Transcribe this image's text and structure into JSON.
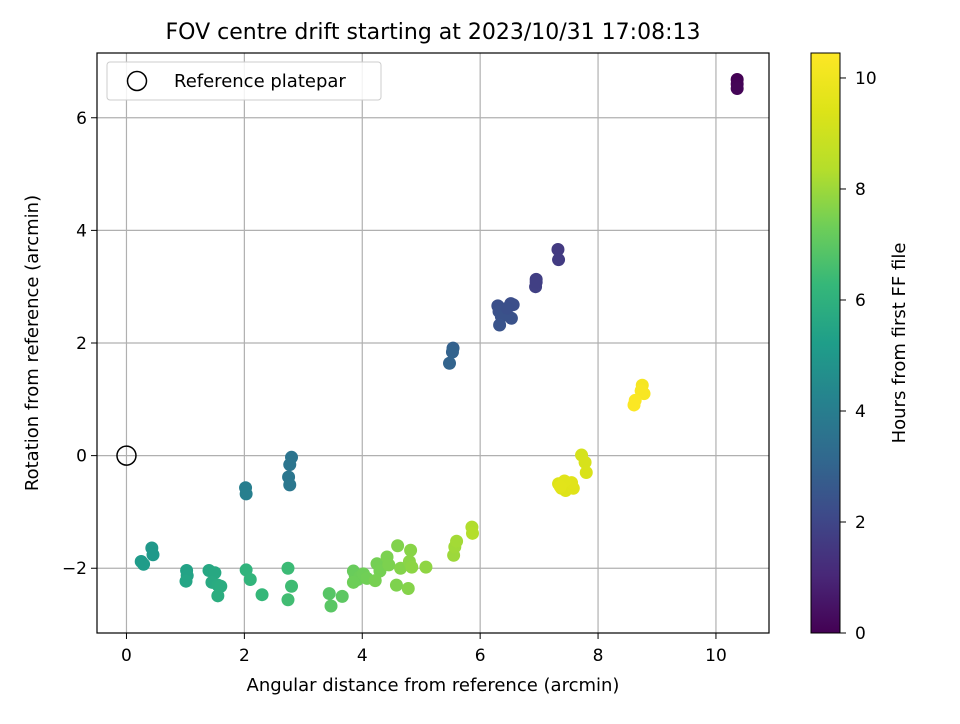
{
  "chart_data": {
    "type": "scatter",
    "title": "FOV centre drift starting at 2023/10/31 17:08:13",
    "xlabel": "Angular distance from reference (arcmin)",
    "ylabel": "Rotation from reference (arcmin)",
    "xlim": [
      -0.5,
      10.9
    ],
    "ylim": [
      -3.15,
      7.15
    ],
    "x_ticks": [
      0,
      2,
      4,
      6,
      8,
      10
    ],
    "y_ticks": [
      -2,
      0,
      2,
      4,
      6
    ],
    "grid": true,
    "legend": {
      "placement": "top-left",
      "entries": [
        "Reference platepar"
      ]
    },
    "reference_point": {
      "x": 0,
      "y": 0,
      "label": "Reference platepar"
    },
    "colorbar": {
      "label": "Hours from first FF file",
      "colormap": "viridis",
      "range": [
        0,
        10.45
      ],
      "ticks": [
        0,
        2,
        4,
        6,
        8,
        10
      ]
    },
    "points": [
      {
        "x": 10.36,
        "y": 6.68,
        "c": 0.0
      },
      {
        "x": 10.36,
        "y": 6.6,
        "c": 0.05
      },
      {
        "x": 10.36,
        "y": 6.52,
        "c": 0.1
      },
      {
        "x": 7.32,
        "y": 3.66,
        "c": 1.6
      },
      {
        "x": 7.33,
        "y": 3.48,
        "c": 1.65
      },
      {
        "x": 6.95,
        "y": 3.13,
        "c": 1.75
      },
      {
        "x": 6.94,
        "y": 3.0,
        "c": 1.8
      },
      {
        "x": 6.95,
        "y": 3.08,
        "c": 1.78
      },
      {
        "x": 6.3,
        "y": 2.66,
        "c": 2.3
      },
      {
        "x": 6.32,
        "y": 2.56,
        "c": 2.35
      },
      {
        "x": 6.36,
        "y": 2.47,
        "c": 2.4
      },
      {
        "x": 6.33,
        "y": 2.32,
        "c": 2.45
      },
      {
        "x": 6.52,
        "y": 2.7,
        "c": 2.25
      },
      {
        "x": 6.56,
        "y": 2.68,
        "c": 2.28
      },
      {
        "x": 6.53,
        "y": 2.44,
        "c": 2.4
      },
      {
        "x": 6.46,
        "y": 2.62,
        "c": 2.3
      },
      {
        "x": 5.54,
        "y": 1.91,
        "c": 2.9
      },
      {
        "x": 5.53,
        "y": 1.84,
        "c": 2.95
      },
      {
        "x": 5.48,
        "y": 1.64,
        "c": 3.0
      },
      {
        "x": 2.8,
        "y": -0.03,
        "c": 3.6
      },
      {
        "x": 2.77,
        "y": -0.16,
        "c": 3.65
      },
      {
        "x": 2.75,
        "y": -0.38,
        "c": 3.7
      },
      {
        "x": 2.77,
        "y": -0.52,
        "c": 3.75
      },
      {
        "x": 2.02,
        "y": -0.57,
        "c": 4.0
      },
      {
        "x": 2.03,
        "y": -0.68,
        "c": 4.05
      },
      {
        "x": 0.43,
        "y": -1.64,
        "c": 5.0
      },
      {
        "x": 0.45,
        "y": -1.76,
        "c": 5.05
      },
      {
        "x": 0.25,
        "y": -1.88,
        "c": 5.1
      },
      {
        "x": 0.29,
        "y": -1.93,
        "c": 5.15
      },
      {
        "x": 1.02,
        "y": -2.04,
        "c": 5.4
      },
      {
        "x": 1.03,
        "y": -2.13,
        "c": 5.45
      },
      {
        "x": 1.01,
        "y": -2.23,
        "c": 5.5
      },
      {
        "x": 1.4,
        "y": -2.04,
        "c": 5.6
      },
      {
        "x": 1.5,
        "y": -2.08,
        "c": 5.65
      },
      {
        "x": 1.45,
        "y": -2.25,
        "c": 5.7
      },
      {
        "x": 1.55,
        "y": -2.3,
        "c": 5.75
      },
      {
        "x": 1.6,
        "y": -2.32,
        "c": 5.8
      },
      {
        "x": 1.55,
        "y": -2.49,
        "c": 5.85
      },
      {
        "x": 2.03,
        "y": -2.03,
        "c": 6.1
      },
      {
        "x": 2.1,
        "y": -2.2,
        "c": 6.15
      },
      {
        "x": 2.3,
        "y": -2.47,
        "c": 6.25
      },
      {
        "x": 2.74,
        "y": -2.0,
        "c": 6.4
      },
      {
        "x": 2.8,
        "y": -2.32,
        "c": 6.45
      },
      {
        "x": 2.74,
        "y": -2.56,
        "c": 6.5
      },
      {
        "x": 3.44,
        "y": -2.45,
        "c": 6.9
      },
      {
        "x": 3.47,
        "y": -2.67,
        "c": 6.95
      },
      {
        "x": 3.66,
        "y": -2.5,
        "c": 7.0
      },
      {
        "x": 3.85,
        "y": -2.05,
        "c": 7.2
      },
      {
        "x": 3.88,
        "y": -2.12,
        "c": 7.22
      },
      {
        "x": 3.92,
        "y": -2.2,
        "c": 7.25
      },
      {
        "x": 3.96,
        "y": -2.15,
        "c": 7.28
      },
      {
        "x": 3.85,
        "y": -2.25,
        "c": 7.3
      },
      {
        "x": 4.02,
        "y": -2.1,
        "c": 7.32
      },
      {
        "x": 4.08,
        "y": -2.18,
        "c": 7.35
      },
      {
        "x": 4.25,
        "y": -1.92,
        "c": 7.4
      },
      {
        "x": 4.3,
        "y": -2.05,
        "c": 7.42
      },
      {
        "x": 4.22,
        "y": -2.22,
        "c": 7.45
      },
      {
        "x": 4.42,
        "y": -1.8,
        "c": 7.5
      },
      {
        "x": 4.45,
        "y": -1.94,
        "c": 7.52
      },
      {
        "x": 4.58,
        "y": -2.3,
        "c": 7.55
      },
      {
        "x": 4.6,
        "y": -1.6,
        "c": 7.6
      },
      {
        "x": 4.65,
        "y": -2.0,
        "c": 7.62
      },
      {
        "x": 4.78,
        "y": -2.36,
        "c": 7.65
      },
      {
        "x": 4.82,
        "y": -1.68,
        "c": 7.7
      },
      {
        "x": 4.8,
        "y": -1.88,
        "c": 7.72
      },
      {
        "x": 4.84,
        "y": -1.98,
        "c": 7.75
      },
      {
        "x": 5.08,
        "y": -1.98,
        "c": 7.8
      },
      {
        "x": 5.55,
        "y": -1.77,
        "c": 8.0
      },
      {
        "x": 5.57,
        "y": -1.62,
        "c": 8.05
      },
      {
        "x": 5.6,
        "y": -1.52,
        "c": 8.1
      },
      {
        "x": 5.86,
        "y": -1.27,
        "c": 8.3
      },
      {
        "x": 5.87,
        "y": -1.38,
        "c": 8.35
      },
      {
        "x": 7.72,
        "y": 0.01,
        "c": 9.2
      },
      {
        "x": 7.78,
        "y": -0.12,
        "c": 9.25
      },
      {
        "x": 7.8,
        "y": -0.3,
        "c": 9.3
      },
      {
        "x": 7.33,
        "y": -0.5,
        "c": 9.4
      },
      {
        "x": 7.38,
        "y": -0.58,
        "c": 9.42
      },
      {
        "x": 7.45,
        "y": -0.62,
        "c": 9.45
      },
      {
        "x": 7.52,
        "y": -0.52,
        "c": 9.48
      },
      {
        "x": 7.58,
        "y": -0.58,
        "c": 9.5
      },
      {
        "x": 7.55,
        "y": -0.48,
        "c": 9.52
      },
      {
        "x": 7.43,
        "y": -0.45,
        "c": 9.55
      },
      {
        "x": 7.36,
        "y": -0.55,
        "c": 9.58
      },
      {
        "x": 8.75,
        "y": 1.25,
        "c": 10.2
      },
      {
        "x": 8.78,
        "y": 1.1,
        "c": 10.25
      },
      {
        "x": 8.73,
        "y": 1.15,
        "c": 10.3
      },
      {
        "x": 8.63,
        "y": 0.98,
        "c": 10.35
      },
      {
        "x": 8.61,
        "y": 0.9,
        "c": 10.4
      }
    ]
  }
}
